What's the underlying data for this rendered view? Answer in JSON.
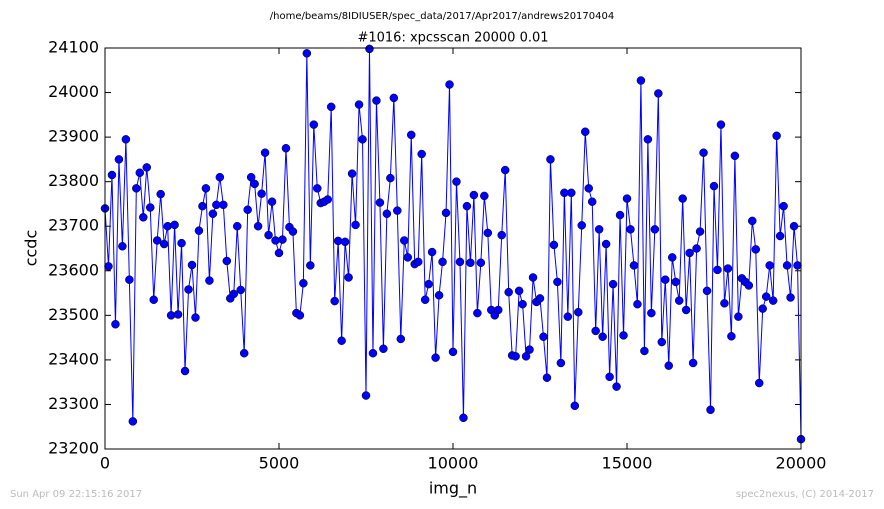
{
  "chart_data": {
    "type": "line",
    "suptitle": "/home/beams/8IDIUSER/spec_data/2017/Apr2017/andrews20170404",
    "title": "#1016: xpcsscan 20000 0.01",
    "x_label": "img_n",
    "y_label": "ccdc",
    "footer_left": "Sun Apr 09 22:15:16 2017",
    "footer_right": "spec2nexus, (C) 2014-2017",
    "color": "#0000ff",
    "xlim": [
      0,
      20000
    ],
    "xticks": [
      0,
      5000,
      10000,
      15000,
      20000
    ],
    "ylim": [
      23200,
      24100
    ],
    "yticks": [
      23200,
      23300,
      23400,
      23500,
      23600,
      23700,
      23800,
      23900,
      24000,
      24100
    ],
    "x": [
      0,
      100,
      200,
      300,
      400,
      500,
      600,
      700,
      800,
      900,
      1000,
      1100,
      1200,
      1300,
      1400,
      1500,
      1600,
      1700,
      1800,
      1900,
      2000,
      2100,
      2200,
      2300,
      2400,
      2500,
      2600,
      2700,
      2800,
      2900,
      3000,
      3100,
      3200,
      3300,
      3400,
      3500,
      3600,
      3700,
      3800,
      3900,
      4000,
      4100,
      4200,
      4300,
      4400,
      4500,
      4600,
      4700,
      4800,
      4900,
      5000,
      5100,
      5200,
      5300,
      5400,
      5500,
      5600,
      5700,
      5800,
      5900,
      6000,
      6100,
      6200,
      6300,
      6400,
      6500,
      6600,
      6700,
      6800,
      6900,
      7000,
      7100,
      7200,
      7300,
      7400,
      7500,
      7600,
      7700,
      7800,
      7900,
      8000,
      8100,
      8200,
      8300,
      8400,
      8500,
      8600,
      8700,
      8800,
      8900,
      9000,
      9100,
      9200,
      9300,
      9400,
      9500,
      9600,
      9700,
      9800,
      9900,
      10000,
      10100,
      10200,
      10300,
      10400,
      10500,
      10600,
      10700,
      10800,
      10900,
      11000,
      11100,
      11200,
      11300,
      11400,
      11500,
      11600,
      11700,
      11800,
      11900,
      12000,
      12100,
      12200,
      12300,
      12400,
      12500,
      12600,
      12700,
      12800,
      12900,
      13000,
      13100,
      13200,
      13300,
      13400,
      13500,
      13600,
      13700,
      13800,
      13900,
      14000,
      14100,
      14200,
      14300,
      14400,
      14500,
      14600,
      14700,
      14800,
      14900,
      15000,
      15100,
      15200,
      15300,
      15400,
      15500,
      15600,
      15700,
      15800,
      15900,
      16000,
      16100,
      16200,
      16300,
      16400,
      16500,
      16600,
      16700,
      16800,
      16900,
      17000,
      17100,
      17200,
      17300,
      17400,
      17500,
      17600,
      17700,
      17800,
      17900,
      18000,
      18100,
      18200,
      18300,
      18400,
      18500,
      18600,
      18700,
      18800,
      18900,
      19000,
      19100,
      19200,
      19300,
      19400,
      19500,
      19600,
      19700,
      19800,
      19900,
      20000
    ],
    "values": [
      23740,
      23610,
      23815,
      23480,
      23850,
      23655,
      23895,
      23580,
      23262,
      23785,
      23820,
      23720,
      23832,
      23742,
      23535,
      23668,
      23772,
      23660,
      23700,
      23500,
      23703,
      23502,
      23662,
      23375,
      23558,
      23613,
      23495,
      23690,
      23745,
      23785,
      23578,
      23728,
      23748,
      23810,
      23748,
      23622,
      23538,
      23548,
      23700,
      23557,
      23415,
      23737,
      23810,
      23795,
      23700,
      23773,
      23865,
      23680,
      23755,
      23668,
      23640,
      23670,
      23875,
      23698,
      23688,
      23505,
      23500,
      23572,
      24088,
      23612,
      23928,
      23785,
      23752,
      23755,
      23760,
      23968,
      23532,
      23667,
      23443,
      23665,
      23585,
      23818,
      23703,
      23973,
      23895,
      23320,
      24098,
      23415,
      23982,
      23753,
      23425,
      23728,
      23808,
      23988,
      23735,
      23447,
      23668,
      23630,
      23905,
      23615,
      23620,
      23862,
      23535,
      23570,
      23642,
      23405,
      23545,
      23620,
      23730,
      24018,
      23418,
      23800,
      23620,
      23270,
      23745,
      23618,
      23770,
      23505,
      23618,
      23768,
      23685,
      23512,
      23500,
      23512,
      23680,
      23826,
      23552,
      23410,
      23408,
      23555,
      23525,
      23408,
      23423,
      23585,
      23530,
      23538,
      23452,
      23360,
      23850,
      23658,
      23575,
      23393,
      23775,
      23497,
      23775,
      23297,
      23507,
      23702,
      23912,
      23785,
      23755,
      23465,
      23693,
      23452,
      23660,
      23362,
      23570,
      23340,
      23725,
      23455,
      23762,
      23693,
      23612,
      23525,
      24027,
      23420,
      23895,
      23505,
      23693,
      23998,
      23440,
      23580,
      23387,
      23630,
      23575,
      23533,
      23762,
      23512,
      23640,
      23393,
      23650,
      23688,
      23865,
      23555,
      23288,
      23790,
      23602,
      23928,
      23527,
      23605,
      23453,
      23858,
      23497,
      23583,
      23575,
      23567,
      23712,
      23648,
      23348,
      23515,
      23542,
      23612,
      23533,
      23903,
      23678,
      23745,
      23612,
      23540,
      23700,
      23612,
      23222
    ]
  }
}
